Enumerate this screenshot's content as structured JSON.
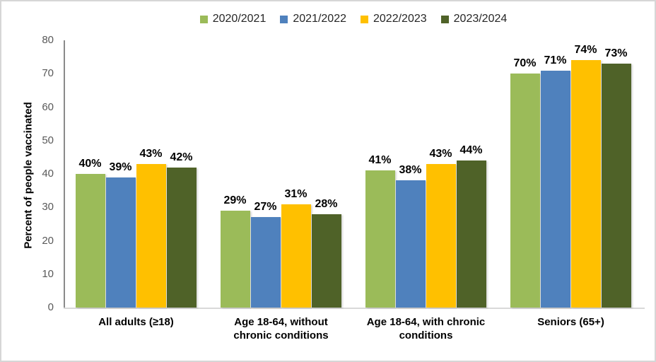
{
  "chart_data": {
    "type": "bar",
    "title": "",
    "ylabel": "Percent of people vaccinated",
    "xlabel": "",
    "ylim": [
      0,
      80
    ],
    "yticks": [
      0,
      10,
      20,
      30,
      40,
      50,
      60,
      70,
      80
    ],
    "grid": false,
    "legend_position": "top",
    "value_suffix": "%",
    "categories": [
      "All adults (≥18)",
      "Age 18-64, without chronic conditions",
      "Age 18-64, with chronic conditions",
      "Seniors (65+)"
    ],
    "series": [
      {
        "name": "2020/2021",
        "color": "#9BBB59",
        "values": [
          40,
          29,
          41,
          70
        ]
      },
      {
        "name": "2021/2022",
        "color": "#4F81BD",
        "values": [
          39,
          27,
          38,
          71
        ]
      },
      {
        "name": "2022/2023",
        "color": "#FFC000",
        "values": [
          43,
          31,
          43,
          74
        ]
      },
      {
        "name": "2023/2024",
        "color": "#4F6228",
        "values": [
          42,
          28,
          44,
          73
        ]
      }
    ]
  },
  "colors": {
    "y_axis_line": "#8a8a8a",
    "x_axis_line": "#d9d9d9",
    "tick_text": "#595959",
    "data_label_text": "#000000",
    "legend_text": "#262626",
    "card_border": "#d6d6d6",
    "background": "#ffffff"
  }
}
